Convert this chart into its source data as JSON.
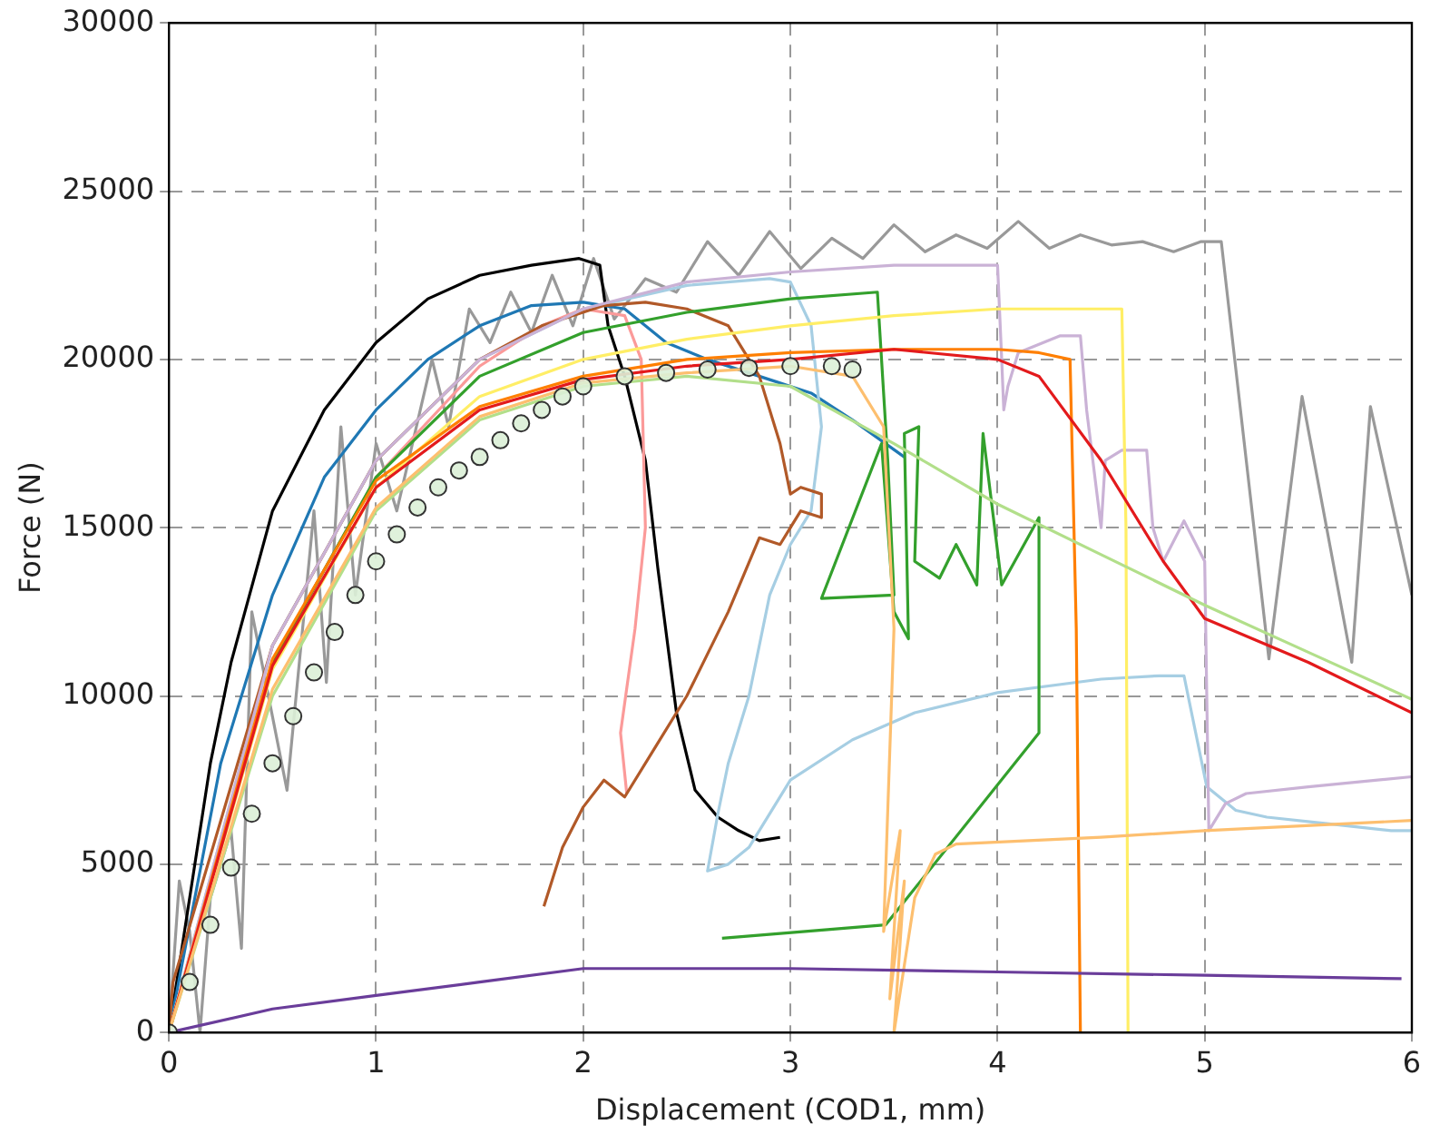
{
  "chart_data": {
    "type": "line",
    "xlabel": "Displacement (COD1, mm)",
    "ylabel": "Force (N)",
    "xlim": [
      0,
      6
    ],
    "xticks": [
      0,
      1,
      2,
      3,
      4,
      5,
      6
    ],
    "ylim": [
      0,
      30000
    ],
    "yticks": [
      0,
      5000,
      10000,
      15000,
      20000,
      25000,
      30000
    ],
    "grid": true,
    "line_style": "solid",
    "series": [
      {
        "color": "#999999",
        "x": [
          0,
          0.05,
          0.1,
          0.15,
          0.2,
          0.3,
          0.35,
          0.4,
          0.57,
          0.7,
          0.76,
          0.83,
          0.9,
          1.0,
          1.1,
          1.27,
          1.35,
          1.45,
          1.55,
          1.65,
          1.75,
          1.85,
          1.95,
          2.05,
          2.15,
          2.3,
          2.45,
          2.6,
          2.75,
          2.9,
          3.05,
          3.2,
          3.35,
          3.5,
          3.65,
          3.8,
          3.95,
          4.1,
          4.25,
          4.4,
          4.55,
          4.7,
          4.85,
          4.98,
          5.08,
          5.31,
          5.47,
          5.71,
          5.8,
          6.0
        ],
        "values": [
          0,
          4500,
          3000,
          0,
          4000,
          6000,
          2500,
          12500,
          7200,
          15500,
          10400,
          18000,
          13000,
          17500,
          15500,
          20000,
          18000,
          21500,
          20500,
          22000,
          20800,
          22500,
          21000,
          23000,
          21200,
          22400,
          22000,
          23500,
          22500,
          23800,
          22700,
          23600,
          23000,
          24000,
          23200,
          23700,
          23300,
          24100,
          23300,
          23700,
          23400,
          23500,
          23200,
          23500,
          23500,
          11100,
          18900,
          11000,
          18600,
          13000
        ]
      },
      {
        "color": "#000000",
        "x": [
          0,
          0.1,
          0.2,
          0.3,
          0.5,
          0.75,
          1,
          1.25,
          1.5,
          1.75,
          1.98,
          2.08,
          2.12,
          2.2,
          2.3,
          2.36,
          2.45,
          2.54,
          2.65,
          2.75,
          2.85,
          2.95
        ],
        "values": [
          0,
          4000,
          8000,
          11000,
          15500,
          18500,
          20500,
          21800,
          22500,
          22800,
          23000,
          22800,
          21000,
          19500,
          17000,
          13800,
          9500,
          7200,
          6400,
          6000,
          5700,
          5800
        ]
      },
      {
        "color": "#1f78b4",
        "x": [
          0,
          0.25,
          0.5,
          0.75,
          1,
          1.25,
          1.5,
          1.75,
          2,
          2.2,
          2.4,
          2.6,
          2.9,
          3.1,
          3.3,
          3.55
        ],
        "values": [
          0,
          8000,
          13000,
          16500,
          18500,
          20000,
          21000,
          21600,
          21700,
          21500,
          20500,
          20000,
          19400,
          19000,
          18200,
          17100
        ]
      },
      {
        "color": "#a6cee3",
        "x": [
          0,
          0.5,
          1,
          1.5,
          2,
          2.5,
          2.9,
          3.0,
          3.1,
          3.15,
          3.1,
          3.0,
          2.9,
          2.8,
          2.7,
          2.65,
          2.6,
          2.7,
          2.8,
          3.0,
          3.3,
          3.6,
          4.0,
          4.5,
          4.78,
          4.9,
          5.01,
          5.15,
          5.3,
          5.6,
          5.9,
          6.0
        ],
        "values": [
          0,
          11500,
          17000,
          20000,
          21500,
          22200,
          22400,
          22300,
          21000,
          18000,
          15500,
          14500,
          13000,
          10000,
          8000,
          6500,
          4800,
          5000,
          5500,
          7500,
          8700,
          9500,
          10100,
          10500,
          10600,
          10600,
          7300,
          6600,
          6400,
          6200,
          6000,
          6000
        ]
      },
      {
        "color": "#fb9a99",
        "x": [
          0,
          0.5,
          1,
          1.5,
          1.8,
          2.0,
          2.2,
          2.28,
          2.3,
          2.25,
          2.18,
          2.21
        ],
        "values": [
          0,
          11000,
          16500,
          19800,
          21000,
          21500,
          21300,
          20000,
          15000,
          12000,
          8900,
          7100
        ]
      },
      {
        "color": "#b15928",
        "x": [
          0,
          0.02,
          0.5,
          1,
          1.5,
          1.8,
          2.1,
          2.3,
          2.5,
          2.7,
          2.85,
          2.95,
          3.0,
          3.05,
          3.15,
          3.15,
          3.05,
          3.0,
          2.95,
          2.85,
          2.7,
          2.5,
          2.35,
          2.2,
          2.1,
          2.0,
          1.9,
          1.81
        ],
        "values": [
          0,
          1500,
          11500,
          17000,
          20000,
          21000,
          21600,
          21700,
          21500,
          21000,
          19500,
          17500,
          16000,
          16200,
          16000,
          15300,
          15500,
          15000,
          14500,
          14700,
          12500,
          10000,
          8500,
          7000,
          7500,
          6700,
          5500,
          3750
        ]
      },
      {
        "color": "#33a02c",
        "x": [
          0,
          0.5,
          1,
          1.5,
          2,
          2.5,
          3,
          3.42,
          3.47,
          3.5,
          3.15,
          3.44,
          3.5,
          3.57,
          3.55,
          3.62,
          3.6,
          3.72,
          3.8,
          3.9,
          3.93,
          4.02,
          4.2,
          4.2,
          3.46,
          2.67
        ],
        "values": [
          0,
          11000,
          16500,
          19500,
          20800,
          21400,
          21800,
          22000,
          17000,
          13000,
          12900,
          17500,
          12500,
          11700,
          17800,
          18000,
          14000,
          13500,
          14500,
          13300,
          17800,
          13300,
          15300,
          8900,
          3200,
          2800
        ]
      },
      {
        "color": "#cab2d6",
        "x": [
          0,
          0.5,
          1,
          1.5,
          2,
          2.5,
          3,
          3.5,
          4.0,
          4.02,
          4.03,
          4.05,
          4.1,
          4.3,
          4.4,
          4.43,
          4.5,
          4.52,
          4.6,
          4.72,
          4.75,
          4.8,
          4.9,
          5.0,
          5.02,
          5.1,
          5.2,
          5.5,
          6.0
        ],
        "values": [
          0,
          11500,
          17000,
          20000,
          21500,
          22300,
          22600,
          22800,
          22800,
          20000,
          18500,
          19200,
          20200,
          20700,
          20700,
          18500,
          15000,
          17000,
          17300,
          17300,
          15000,
          14000,
          15200,
          14000,
          6000,
          6800,
          7100,
          7300,
          7600
        ]
      },
      {
        "color": "#ffee66",
        "x": [
          0,
          0.5,
          1,
          1.5,
          2,
          2.5,
          3,
          3.5,
          4,
          4.6,
          4.62,
          4.63
        ],
        "values": [
          0,
          10800,
          16200,
          18900,
          20000,
          20600,
          21000,
          21300,
          21500,
          21500,
          15000,
          0
        ]
      },
      {
        "color": "#ff7f00",
        "x": [
          0,
          0.5,
          1,
          1.5,
          2,
          2.5,
          3,
          3.5,
          4,
          4.2,
          4.35,
          4.38,
          4.4
        ],
        "values": [
          0,
          11100,
          16400,
          18600,
          19500,
          20000,
          20200,
          20300,
          20300,
          20200,
          20000,
          12000,
          0
        ]
      },
      {
        "color": "#e31a1c",
        "x": [
          0,
          0.5,
          1,
          1.5,
          2,
          2.5,
          3,
          3.5,
          4,
          4.2,
          4.5,
          4.8,
          5.0,
          5.5,
          6.0
        ],
        "values": [
          0,
          10900,
          16200,
          18500,
          19400,
          19800,
          20000,
          20300,
          20000,
          19500,
          17000,
          14000,
          12300,
          11000,
          9500
        ]
      },
      {
        "color": "#b2df8a",
        "x": [
          0,
          0.5,
          1,
          1.5,
          2,
          2.5,
          3,
          3.5,
          4,
          4.5,
          5,
          5.5,
          6
        ],
        "values": [
          0,
          10000,
          15500,
          18200,
          19200,
          19500,
          19200,
          17500,
          15700,
          14200,
          12700,
          11300,
          9900
        ]
      },
      {
        "color": "#fdbf6f",
        "x": [
          0,
          0.5,
          1,
          1.5,
          2,
          2.5,
          3,
          3.3,
          3.45,
          3.5,
          3.45,
          3.53,
          3.48,
          3.55,
          3.5,
          3.6,
          3.7,
          3.8,
          4.5,
          5,
          6
        ],
        "values": [
          0,
          10200,
          15600,
          18300,
          19300,
          19600,
          19800,
          19500,
          18000,
          12000,
          3000,
          6000,
          1000,
          4500,
          0,
          4000,
          5300,
          5600,
          5800,
          6000,
          6300
        ]
      },
      {
        "color": "#6a3d9a",
        "x": [
          0,
          0.5,
          1,
          1.5,
          2,
          2.5,
          3,
          4,
          5,
          5.95
        ],
        "values": [
          0,
          700,
          1100,
          1500,
          1900,
          1900,
          1900,
          1800,
          1700,
          1600
        ]
      },
      {
        "type": "scatter",
        "marker": "circle",
        "color": "#333333",
        "x": [
          0,
          0.1,
          0.2,
          0.3,
          0.4,
          0.5,
          0.6,
          0.7,
          0.8,
          0.9,
          1.0,
          1.1,
          1.2,
          1.3,
          1.4,
          1.5,
          1.6,
          1.7,
          1.8,
          1.9,
          2.0,
          2.2,
          2.4,
          2.6,
          2.8,
          3.0,
          3.2,
          3.3
        ],
        "values": [
          0,
          1500,
          3200,
          4900,
          6500,
          8000,
          9400,
          10700,
          11900,
          13000,
          14000,
          14800,
          15600,
          16200,
          16700,
          17100,
          17600,
          18100,
          18500,
          18900,
          19200,
          19500,
          19600,
          19700,
          19750,
          19800,
          19800,
          19700
        ]
      }
    ]
  }
}
